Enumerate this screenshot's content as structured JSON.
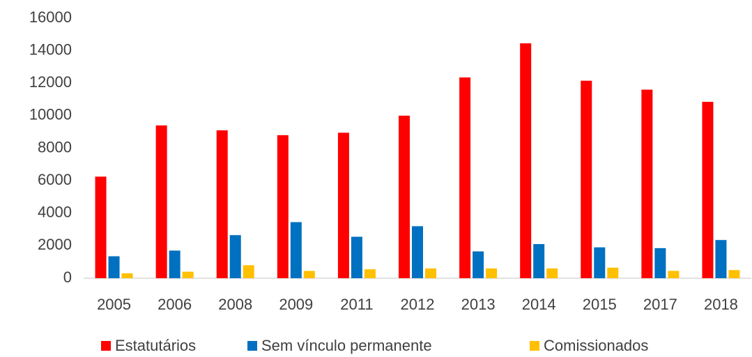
{
  "chart_data": {
    "type": "bar",
    "categories": [
      "2005",
      "2006",
      "2008",
      "2009",
      "2011",
      "2012",
      "2013",
      "2014",
      "2015",
      "2017",
      "2018"
    ],
    "series": [
      {
        "name": "Estatutários",
        "color": "#ff0000",
        "values": [
          6250,
          9400,
          9100,
          8800,
          8950,
          10000,
          12350,
          14450,
          12150,
          11600,
          10850
        ]
      },
      {
        "name": "Sem vínculo permanente",
        "color": "#0070c0",
        "values": [
          1350,
          1700,
          2650,
          3450,
          2550,
          3200,
          1650,
          2100,
          1900,
          1850,
          2350
        ]
      },
      {
        "name": "Comissionados",
        "color": "#ffc000",
        "values": [
          300,
          400,
          800,
          450,
          550,
          600,
          600,
          600,
          650,
          450,
          500
        ]
      }
    ],
    "ylim": [
      0,
      16000
    ],
    "yticks": [
      0,
      2000,
      4000,
      6000,
      8000,
      10000,
      12000,
      14000,
      16000
    ],
    "grid": false,
    "legend": "bottom"
  }
}
